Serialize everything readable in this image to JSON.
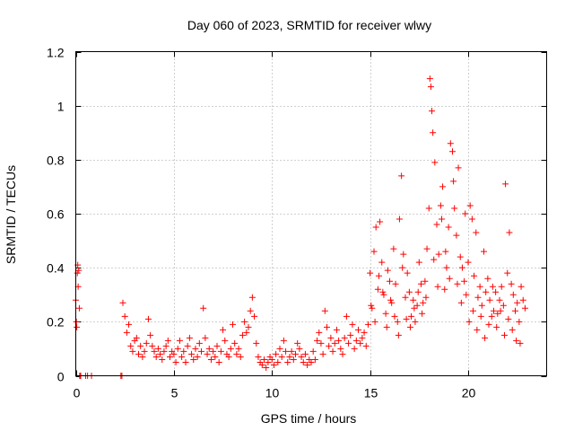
{
  "chart_data": {
    "type": "scatter",
    "title": "Day 060 of 2023, SRMTID for receiver wlwy",
    "xlabel": "GPS time / hours",
    "ylabel": "SRMTID / TECUs",
    "xlim": [
      0,
      24
    ],
    "ylim": [
      0,
      1.2
    ],
    "xticks": [
      0,
      5,
      10,
      15,
      20
    ],
    "xtick_labels": [
      "0",
      "5",
      "10",
      "15",
      "20"
    ],
    "yticks": [
      0,
      0.2,
      0.4,
      0.6,
      0.8,
      1.0,
      1.2
    ],
    "ytick_labels": [
      "0",
      "0.2",
      "0.4",
      "0.6",
      "0.8",
      "1",
      "1.2"
    ],
    "grid": true,
    "marker": "+",
    "series": [
      {
        "name": "SRMTID",
        "color": "#ff0000",
        "x": [
          0.0,
          0.03,
          0.05,
          0.08,
          0.1,
          0.12,
          0.15,
          0.18,
          0.2,
          0.22,
          0.25,
          0.5,
          0.6,
          0.8,
          2.3,
          2.35,
          2.4,
          2.5,
          2.6,
          2.7,
          2.8,
          2.9,
          3.0,
          3.1,
          3.2,
          3.3,
          3.4,
          3.5,
          3.6,
          3.7,
          3.8,
          3.9,
          4.0,
          4.1,
          4.2,
          4.3,
          4.4,
          4.5,
          4.6,
          4.7,
          4.8,
          4.9,
          5.0,
          5.1,
          5.2,
          5.3,
          5.4,
          5.5,
          5.6,
          5.7,
          5.8,
          5.9,
          6.0,
          6.1,
          6.2,
          6.3,
          6.4,
          6.5,
          6.6,
          6.7,
          6.8,
          6.9,
          7.0,
          7.1,
          7.2,
          7.3,
          7.4,
          7.5,
          7.6,
          7.7,
          7.8,
          7.9,
          8.0,
          8.1,
          8.2,
          8.3,
          8.4,
          8.5,
          8.6,
          8.7,
          8.8,
          8.9,
          9.0,
          9.1,
          9.2,
          9.3,
          9.4,
          9.5,
          9.6,
          9.7,
          9.8,
          9.9,
          10.0,
          10.1,
          10.2,
          10.3,
          10.4,
          10.5,
          10.6,
          10.7,
          10.8,
          10.9,
          11.0,
          11.1,
          11.2,
          11.3,
          11.4,
          11.5,
          11.6,
          11.7,
          11.8,
          11.9,
          12.0,
          12.1,
          12.2,
          12.3,
          12.4,
          12.5,
          12.6,
          12.7,
          12.8,
          12.9,
          13.0,
          13.1,
          13.2,
          13.3,
          13.4,
          13.5,
          13.6,
          13.7,
          13.8,
          13.9,
          14.0,
          14.1,
          14.2,
          14.3,
          14.4,
          14.5,
          14.6,
          14.7,
          14.8,
          14.9,
          15.0,
          15.1,
          15.2,
          15.3,
          15.4,
          15.5,
          15.6,
          15.7,
          15.8,
          15.9,
          16.0,
          16.1,
          16.2,
          16.3,
          16.4,
          16.5,
          16.6,
          16.7,
          16.8,
          16.9,
          17.0,
          17.1,
          17.2,
          17.3,
          17.4,
          17.5,
          17.6,
          17.7,
          17.8,
          17.9,
          18.0,
          18.05,
          18.1,
          18.15,
          18.2,
          18.3,
          18.4,
          18.5,
          18.6,
          18.7,
          18.8,
          18.9,
          19.0,
          19.1,
          19.2,
          19.25,
          19.3,
          19.4,
          19.5,
          19.6,
          19.7,
          19.8,
          19.9,
          20.0,
          20.1,
          20.2,
          20.3,
          20.4,
          20.5,
          20.6,
          20.7,
          20.8,
          20.9,
          21.0,
          21.1,
          21.2,
          21.3,
          21.4,
          21.5,
          21.6,
          21.7,
          21.8,
          21.9,
          22.0,
          22.1,
          22.2,
          22.3,
          22.4,
          22.5,
          22.6,
          22.7,
          22.8,
          22.9,
          15.05,
          15.25,
          15.45,
          15.65,
          15.85,
          16.05,
          16.25,
          16.45,
          16.65,
          16.85,
          17.05,
          17.25,
          17.45,
          17.65,
          17.85,
          18.25,
          18.45,
          18.65,
          18.85,
          19.05,
          19.45,
          19.65,
          19.85,
          20.05,
          20.25,
          20.45,
          20.65,
          20.85,
          21.05,
          21.25,
          21.45,
          21.65,
          21.85,
          22.05,
          22.25,
          22.45,
          22.65
        ],
        "y": [
          0.28,
          0.2,
          0.18,
          0.38,
          0.41,
          0.33,
          0.39,
          0.25,
          0.0,
          0.0,
          0.0,
          0.0,
          0.0,
          0.0,
          0.0,
          0.0,
          0.27,
          0.22,
          0.16,
          0.19,
          0.11,
          0.09,
          0.13,
          0.14,
          0.08,
          0.11,
          0.07,
          0.09,
          0.12,
          0.21,
          0.15,
          0.11,
          0.09,
          0.07,
          0.1,
          0.08,
          0.06,
          0.09,
          0.11,
          0.13,
          0.07,
          0.09,
          0.08,
          0.05,
          0.1,
          0.13,
          0.07,
          0.09,
          0.05,
          0.11,
          0.14,
          0.08,
          0.06,
          0.1,
          0.07,
          0.12,
          0.09,
          0.25,
          0.14,
          0.08,
          0.1,
          0.06,
          0.09,
          0.07,
          0.11,
          0.05,
          0.09,
          0.17,
          0.13,
          0.08,
          0.07,
          0.1,
          0.19,
          0.12,
          0.08,
          0.1,
          0.07,
          0.15,
          0.2,
          0.16,
          0.18,
          0.24,
          0.29,
          0.22,
          0.12,
          0.07,
          0.05,
          0.04,
          0.06,
          0.03,
          0.05,
          0.07,
          0.06,
          0.04,
          0.08,
          0.05,
          0.1,
          0.07,
          0.13,
          0.09,
          0.05,
          0.07,
          0.09,
          0.06,
          0.08,
          0.12,
          0.1,
          0.07,
          0.05,
          0.08,
          0.04,
          0.06,
          0.05,
          0.09,
          0.06,
          0.13,
          0.16,
          0.12,
          0.08,
          0.24,
          0.18,
          0.11,
          0.14,
          0.09,
          0.12,
          0.17,
          0.13,
          0.1,
          0.08,
          0.14,
          0.22,
          0.12,
          0.15,
          0.19,
          0.1,
          0.13,
          0.17,
          0.12,
          0.14,
          0.16,
          0.11,
          0.19,
          0.38,
          0.25,
          0.46,
          0.55,
          0.32,
          0.57,
          0.42,
          0.3,
          0.23,
          0.39,
          0.35,
          0.27,
          0.47,
          0.34,
          0.2,
          0.58,
          0.74,
          0.45,
          0.29,
          0.38,
          0.31,
          0.22,
          0.28,
          0.2,
          0.26,
          0.42,
          0.34,
          0.27,
          0.35,
          0.47,
          0.62,
          1.1,
          1.07,
          0.98,
          0.9,
          0.79,
          0.56,
          0.45,
          0.63,
          0.7,
          0.32,
          0.4,
          0.55,
          0.86,
          0.83,
          0.72,
          0.62,
          0.52,
          0.77,
          0.44,
          0.4,
          0.35,
          0.3,
          0.42,
          0.63,
          0.58,
          0.37,
          0.53,
          0.29,
          0.33,
          0.26,
          0.46,
          0.31,
          0.36,
          0.28,
          0.22,
          0.24,
          0.31,
          0.23,
          0.28,
          0.33,
          0.26,
          0.71,
          0.38,
          0.53,
          0.34,
          0.3,
          0.24,
          0.27,
          0.2,
          0.33,
          0.28,
          0.25,
          0.26,
          0.2,
          0.37,
          0.31,
          0.18,
          0.28,
          0.22,
          0.15,
          0.4,
          0.21,
          0.18,
          0.25,
          0.31,
          0.23,
          0.29,
          0.43,
          0.33,
          0.58,
          0.46,
          0.36,
          0.34,
          0.27,
          0.6,
          0.2,
          0.24,
          0.17,
          0.22,
          0.14,
          0.19,
          0.33,
          0.18,
          0.24,
          0.15,
          0.21,
          0.17,
          0.13,
          0.12
        ]
      }
    ]
  }
}
